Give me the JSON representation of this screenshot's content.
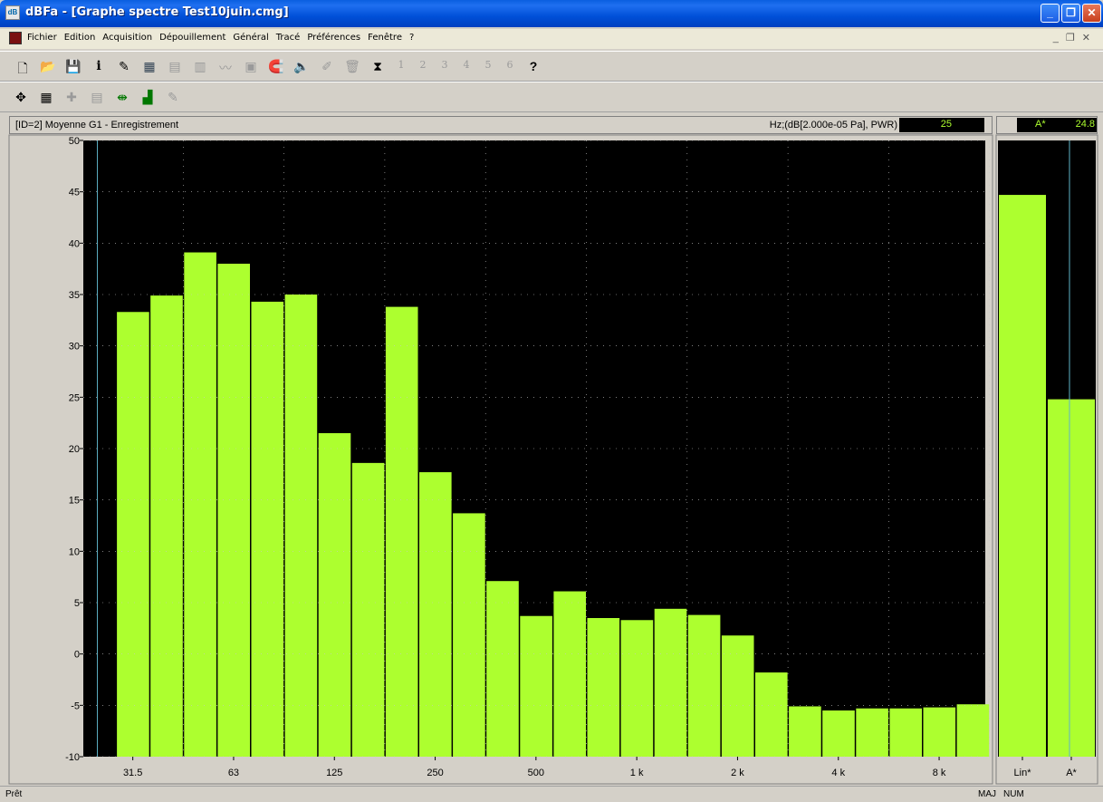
{
  "window": {
    "title": "dBFa - [Graphe spectre Test10juin.cmg]",
    "icon": "dbfa-app-icon",
    "controls": [
      "minimize-icon",
      "restore-icon",
      "close-icon"
    ]
  },
  "menu": [
    "Fichier",
    "Edition",
    "Acquisition",
    "Dépouillement",
    "Général",
    "Tracé",
    "Préférences",
    "Fenêtre",
    "?"
  ],
  "toolbar1": {
    "icons": [
      "new-file-icon",
      "open-folder-icon",
      "save-icon",
      "info-icon",
      "pencil-icon",
      "calculator-icon",
      "grid-icon",
      "spectrum-icon",
      "waveform-icon",
      "table-icon",
      "magnet-icon",
      "speaker-icon",
      "edit-icon",
      "trash-icon",
      "hourglass-icon"
    ],
    "numbers": [
      "1",
      "2",
      "3",
      "4",
      "5",
      "6"
    ],
    "help_icon": "help-icon"
  },
  "toolbar2": {
    "icons": [
      "move-icon",
      "chart-settings-icon",
      "crosshair-icon",
      "zoom-window-icon",
      "fit-icon",
      "bars-icon",
      "pipette-icon"
    ]
  },
  "chart_header": {
    "label": "[ID=2] Moyenne G1  - Enregistrement",
    "units": "Hz;(dB[2.000e-05 Pa], PWR)",
    "value": "25"
  },
  "side_header": {
    "label": "A*",
    "value": "24.8"
  },
  "chart_data": {
    "type": "bar",
    "x_tick_labels": [
      "31.5",
      "63",
      "125",
      "250",
      "500",
      "1 k",
      "2 k",
      "4 k",
      "8 k"
    ],
    "y_ticks": [
      "50",
      "45",
      "40",
      "35",
      "30",
      "25",
      "20",
      "15",
      "10",
      "5",
      "0",
      "-5",
      "-10"
    ],
    "ylim": [
      -10,
      50
    ],
    "xscale": "third-octave",
    "grid": true,
    "categories": [
      "25",
      "31.5",
      "40",
      "50",
      "63",
      "80",
      "100",
      "125",
      "160",
      "200",
      "250",
      "315",
      "400",
      "500",
      "630",
      "800",
      "1 k",
      "1.25 k",
      "1.6 k",
      "2 k",
      "2.5 k",
      "3.15 k",
      "4 k",
      "5 k",
      "6.3 k",
      "8 k",
      "10 k"
    ],
    "values": [
      null,
      33.3,
      34.9,
      39.1,
      38.0,
      34.3,
      35.0,
      21.5,
      18.6,
      33.8,
      17.7,
      13.7,
      7.1,
      3.7,
      6.1,
      3.5,
      3.3,
      4.4,
      3.8,
      1.8,
      -1.8,
      -5.1,
      -5.5,
      -5.3,
      -5.3,
      -5.2,
      -4.9
    ],
    "bar_color": "#adff2f",
    "background": "#000000",
    "cursor_category": "25"
  },
  "side_chart": {
    "type": "bar",
    "categories": [
      "Lin*",
      "A*"
    ],
    "values": [
      44.7,
      24.8
    ],
    "ylim": [
      -10,
      50
    ],
    "bar_color": "#adff2f"
  },
  "status": {
    "text": "Prêt",
    "indicators": [
      "MAJ",
      "NUM"
    ]
  }
}
